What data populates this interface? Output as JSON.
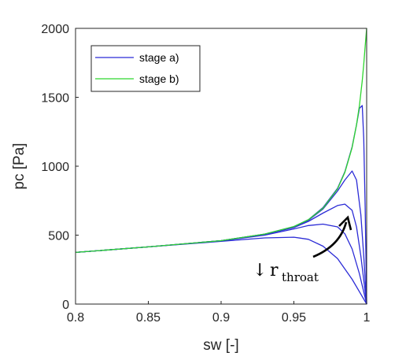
{
  "chart_data": {
    "type": "line",
    "xlabel": "sw [-]",
    "ylabel": "pc [Pa]",
    "xlim": [
      0.8,
      1.0
    ],
    "ylim": [
      0,
      2000
    ],
    "xticks": [
      "0.8",
      "0.85",
      "0.9",
      "0.95",
      "1"
    ],
    "yticks": [
      "0",
      "500",
      "1000",
      "1500",
      "2000"
    ],
    "grid": false,
    "legend_position": "top-left",
    "annotation": {
      "arrow": "↓",
      "text": "r",
      "subscript": "throat"
    },
    "series": [
      {
        "name": "stage a)",
        "color": "#2b2bd6",
        "curves": [
          {
            "x": [
              0.8,
              0.85,
              0.9,
              0.93,
              0.95,
              0.96,
              0.97,
              0.98,
              0.99,
              0.995,
              1.0
            ],
            "y": [
              375,
              415,
              455,
              480,
              485,
              470,
              420,
              330,
              180,
              90,
              0
            ]
          },
          {
            "x": [
              0.8,
              0.85,
              0.9,
              0.93,
              0.95,
              0.96,
              0.97,
              0.98,
              0.985,
              0.99,
              0.995,
              1.0
            ],
            "y": [
              375,
              415,
              458,
              500,
              545,
              570,
              580,
              560,
              510,
              400,
              220,
              0
            ]
          },
          {
            "x": [
              0.8,
              0.85,
              0.9,
              0.93,
              0.95,
              0.96,
              0.97,
              0.98,
              0.985,
              0.99,
              0.993,
              0.996,
              1.0
            ],
            "y": [
              375,
              415,
              460,
              505,
              555,
              600,
              660,
              715,
              725,
              680,
              560,
              350,
              0
            ]
          },
          {
            "x": [
              0.8,
              0.85,
              0.9,
              0.93,
              0.95,
              0.96,
              0.97,
              0.98,
              0.985,
              0.99,
              0.993,
              0.996,
              0.998,
              1.0
            ],
            "y": [
              375,
              415,
              460,
              507,
              560,
              608,
              690,
              820,
              900,
              965,
              900,
              650,
              350,
              0
            ]
          },
          {
            "x": [
              0.8,
              0.85,
              0.9,
              0.93,
              0.95,
              0.96,
              0.97,
              0.98,
              0.985,
              0.99,
              0.993,
              0.995,
              0.997,
              0.998,
              0.999,
              1.0
            ],
            "y": [
              375,
              415,
              460,
              508,
              562,
              612,
              700,
              840,
              960,
              1140,
              1300,
              1420,
              1440,
              1200,
              700,
              0
            ]
          }
        ]
      },
      {
        "name": "stage b)",
        "color": "#2ed62e",
        "curves": [
          {
            "x": [
              0.8,
              0.85,
              0.9,
              0.93,
              0.95,
              0.96,
              0.97,
              0.98,
              0.985,
              0.99,
              0.993,
              0.995,
              0.997,
              0.998,
              0.999,
              1.0
            ],
            "y": [
              375,
              415,
              460,
              508,
              562,
              612,
              695,
              835,
              955,
              1135,
              1300,
              1440,
              1620,
              1740,
              1870,
              2000
            ]
          }
        ]
      }
    ]
  }
}
